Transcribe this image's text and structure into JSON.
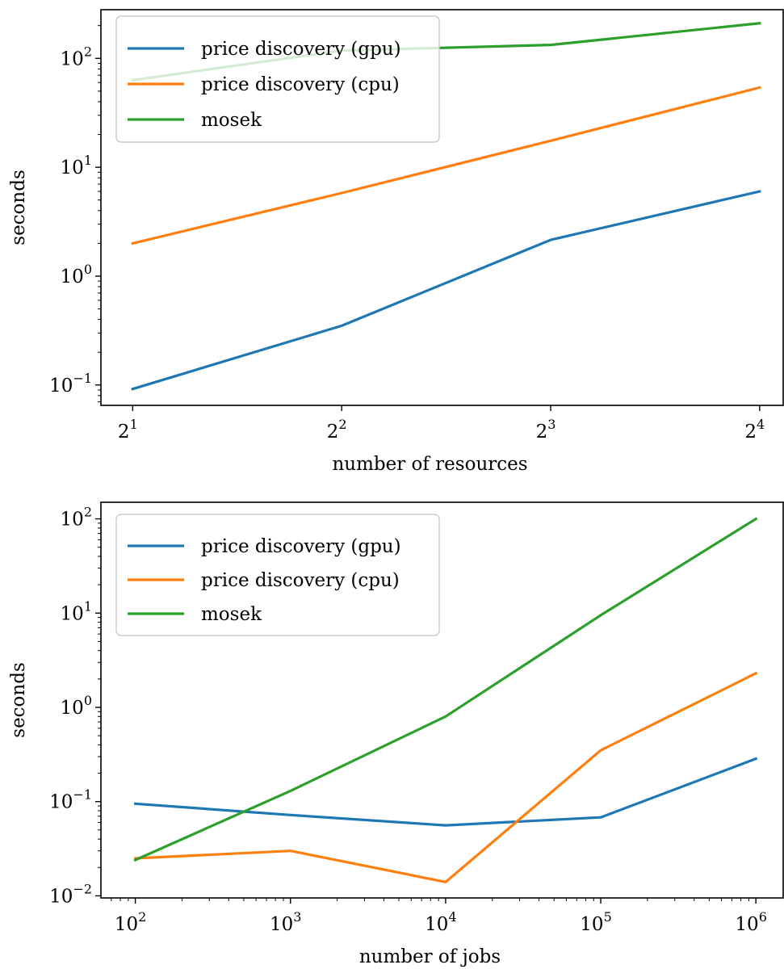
{
  "chart_data": [
    {
      "type": "line",
      "title": "",
      "xlabel": "number of resources",
      "ylabel": "seconds",
      "xscale": "log2",
      "yscale": "log10",
      "x": [
        2,
        4,
        8,
        16
      ],
      "xlim": [
        1.8,
        17.3
      ],
      "ylim": [
        0.065,
        280
      ],
      "xticks": [
        {
          "value": 2,
          "base": "2",
          "exp": "1"
        },
        {
          "value": 4,
          "base": "2",
          "exp": "2"
        },
        {
          "value": 8,
          "base": "2",
          "exp": "3"
        },
        {
          "value": 16,
          "base": "2",
          "exp": "4"
        }
      ],
      "yticks": [
        {
          "value": 0.1,
          "base": "10",
          "exp": "−1"
        },
        {
          "value": 1,
          "base": "10",
          "exp": "0"
        },
        {
          "value": 10,
          "base": "10",
          "exp": "1"
        },
        {
          "value": 100,
          "base": "10",
          "exp": "2"
        }
      ],
      "legend_position": "top-left",
      "grid": false,
      "series": [
        {
          "name": "price discovery (gpu)",
          "color": "#1f77b4",
          "values": [
            0.092,
            0.35,
            2.15,
            6.0
          ]
        },
        {
          "name": "price discovery (cpu)",
          "color": "#ff7f0e",
          "values": [
            2.0,
            5.8,
            17.5,
            54
          ]
        },
        {
          "name": "mosek",
          "color": "#2ca02c",
          "values": [
            63,
            118,
            133,
            210
          ]
        }
      ]
    },
    {
      "type": "line",
      "title": "",
      "xlabel": "number of jobs",
      "ylabel": "seconds",
      "xscale": "log10",
      "yscale": "log10",
      "x": [
        100,
        1000,
        10000,
        100000,
        1000000
      ],
      "xlim": [
        60,
        1500000
      ],
      "ylim": [
        0.0095,
        150
      ],
      "xticks": [
        {
          "value": 100,
          "base": "10",
          "exp": "2"
        },
        {
          "value": 1000,
          "base": "10",
          "exp": "3"
        },
        {
          "value": 10000,
          "base": "10",
          "exp": "4"
        },
        {
          "value": 100000,
          "base": "10",
          "exp": "5"
        },
        {
          "value": 1000000,
          "base": "10",
          "exp": "6"
        }
      ],
      "yticks": [
        {
          "value": 0.01,
          "base": "10",
          "exp": "−2"
        },
        {
          "value": 0.1,
          "base": "10",
          "exp": "−1"
        },
        {
          "value": 1,
          "base": "10",
          "exp": "0"
        },
        {
          "value": 10,
          "base": "10",
          "exp": "1"
        },
        {
          "value": 100,
          "base": "10",
          "exp": "2"
        }
      ],
      "legend_position": "top-left",
      "grid": false,
      "series": [
        {
          "name": "price discovery (gpu)",
          "color": "#1f77b4",
          "values": [
            0.095,
            0.072,
            0.056,
            0.068,
            0.285
          ]
        },
        {
          "name": "price discovery (cpu)",
          "color": "#ff7f0e",
          "values": [
            0.025,
            0.03,
            0.014,
            0.35,
            2.3
          ]
        },
        {
          "name": "mosek",
          "color": "#2ca02c",
          "values": [
            0.024,
            0.13,
            0.8,
            9.5,
            100
          ]
        }
      ]
    }
  ]
}
